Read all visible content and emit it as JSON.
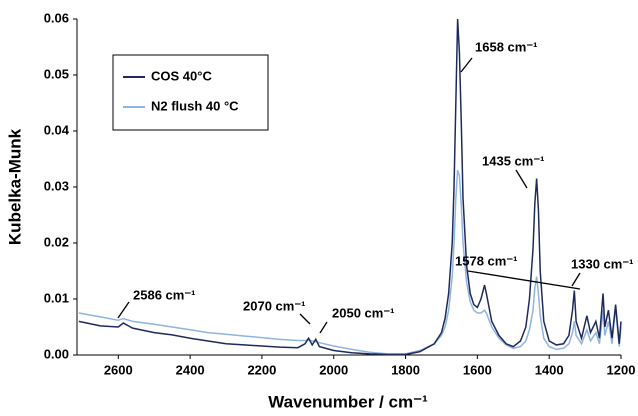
{
  "chart_data": {
    "type": "line",
    "xlabel": "Wavenumber  / cm⁻¹",
    "ylabel": "Kubelka-Munk",
    "xlim": [
      2715,
      1200
    ],
    "ylim": [
      0,
      0.06
    ],
    "xticks": [
      2600,
      2400,
      2200,
      2000,
      1800,
      1600,
      1400,
      1200
    ],
    "yticks": [
      {
        "value": 0,
        "label": "0.00"
      },
      0.01,
      0.02,
      0.03,
      0.04,
      0.05,
      0.06
    ],
    "grid": false,
    "legend": "upper left",
    "annotations": [
      "1658 cm⁻¹",
      "1435 cm⁻¹",
      "1578 cm⁻¹",
      "1330 cm⁻¹",
      "2586 cm⁻¹",
      "2070 cm⁻¹",
      "2050 cm⁻¹"
    ],
    "x": [
      2710,
      2650,
      2600,
      2586,
      2560,
      2500,
      2450,
      2400,
      2350,
      2300,
      2250,
      2200,
      2150,
      2100,
      2080,
      2070,
      2060,
      2050,
      2040,
      2000,
      1950,
      1900,
      1850,
      1800,
      1760,
      1720,
      1700,
      1690,
      1680,
      1670,
      1665,
      1660,
      1655,
      1650,
      1645,
      1640,
      1630,
      1620,
      1610,
      1600,
      1590,
      1580,
      1575,
      1560,
      1540,
      1520,
      1500,
      1480,
      1465,
      1455,
      1445,
      1440,
      1435,
      1430,
      1425,
      1415,
      1400,
      1380,
      1360,
      1345,
      1335,
      1330,
      1325,
      1310,
      1295,
      1285,
      1270,
      1260,
      1250,
      1245,
      1235,
      1225,
      1215,
      1205,
      1200
    ],
    "series": [
      {
        "name": "COS 40°C",
        "color": "#1f2a5c",
        "values": [
          0.006,
          0.0052,
          0.005,
          0.0057,
          0.0048,
          0.004,
          0.0036,
          0.003,
          0.0025,
          0.002,
          0.0018,
          0.0016,
          0.0014,
          0.0013,
          0.002,
          0.003,
          0.0018,
          0.0028,
          0.0015,
          0.0008,
          0.0004,
          0.0002,
          0.0001,
          0.0001,
          0.0006,
          0.002,
          0.004,
          0.0065,
          0.011,
          0.02,
          0.03,
          0.045,
          0.06,
          0.054,
          0.042,
          0.028,
          0.016,
          0.011,
          0.009,
          0.0085,
          0.01,
          0.0125,
          0.011,
          0.006,
          0.0035,
          0.002,
          0.0015,
          0.0025,
          0.005,
          0.01,
          0.019,
          0.027,
          0.0315,
          0.026,
          0.015,
          0.006,
          0.0025,
          0.0018,
          0.002,
          0.0035,
          0.008,
          0.0115,
          0.006,
          0.003,
          0.007,
          0.004,
          0.006,
          0.003,
          0.011,
          0.005,
          0.008,
          0.003,
          0.009,
          0.002,
          0.006
        ]
      },
      {
        "name": "N2 flush 40 °C",
        "color": "#8fb4e0",
        "values": [
          0.0075,
          0.0068,
          0.0062,
          0.0065,
          0.006,
          0.0055,
          0.005,
          0.0045,
          0.004,
          0.0037,
          0.0034,
          0.0031,
          0.0028,
          0.0026,
          0.0026,
          0.0027,
          0.0025,
          0.0024,
          0.0022,
          0.0016,
          0.001,
          0.0005,
          0.0002,
          0.0002,
          0.0008,
          0.002,
          0.0035,
          0.005,
          0.008,
          0.014,
          0.02,
          0.028,
          0.033,
          0.032,
          0.027,
          0.02,
          0.013,
          0.0095,
          0.008,
          0.0075,
          0.0075,
          0.008,
          0.0075,
          0.005,
          0.003,
          0.0018,
          0.0012,
          0.0015,
          0.0025,
          0.0045,
          0.008,
          0.012,
          0.014,
          0.011,
          0.007,
          0.003,
          0.0015,
          0.001,
          0.0012,
          0.002,
          0.004,
          0.006,
          0.0035,
          0.002,
          0.0045,
          0.0025,
          0.004,
          0.002,
          0.008,
          0.0035,
          0.006,
          0.002,
          0.0085,
          0.0015,
          0.005
        ]
      }
    ]
  }
}
